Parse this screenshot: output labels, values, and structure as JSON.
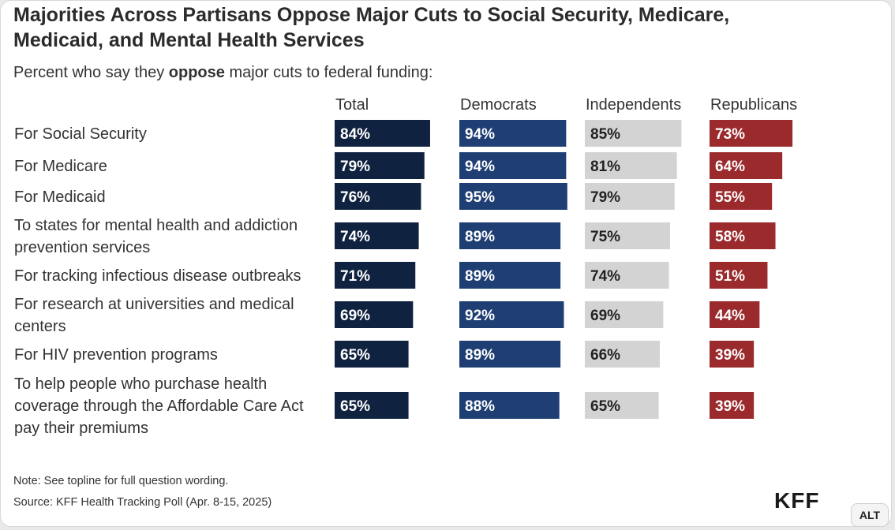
{
  "title": "Majorities Across Partisans Oppose Major Cuts to Social Security, Medicare, Medicaid, and Mental Health Services",
  "subtitle_pre": "Percent who say they ",
  "subtitle_bold": "oppose",
  "subtitle_post": " major cuts to federal funding:",
  "note": "Note: See topline for full question wording.",
  "source": "Source: KFF Health Tracking Poll (Apr. 8-15, 2025)",
  "logo": "KFF",
  "alt_button": "ALT",
  "colors": {
    "Total": "#0f2240",
    "Democrats": "#1f3f74",
    "Independents": "#d3d3d3",
    "Republicans": "#9b2a2d"
  },
  "chart_data": {
    "type": "bar",
    "categories": [
      [
        "For Social Security"
      ],
      [
        "For Medicare"
      ],
      [
        "For Medicaid"
      ],
      [
        "To states for mental health and addiction",
        "prevention services"
      ],
      [
        "For tracking infectious disease outbreaks"
      ],
      [
        "For research at universities and medical",
        "centers"
      ],
      [
        "For HIV prevention programs"
      ],
      [
        "To help people who purchase health",
        "coverage through the Affordable Care Act",
        "pay their premiums"
      ]
    ],
    "series": [
      {
        "name": "Total",
        "values": [
          84,
          79,
          76,
          74,
          71,
          69,
          65,
          65
        ]
      },
      {
        "name": "Democrats",
        "values": [
          94,
          94,
          95,
          89,
          89,
          92,
          89,
          88
        ]
      },
      {
        "name": "Independents",
        "values": [
          85,
          81,
          79,
          75,
          74,
          69,
          66,
          65
        ]
      },
      {
        "name": "Republicans",
        "values": [
          73,
          64,
          55,
          58,
          51,
          44,
          39,
          39
        ]
      }
    ],
    "value_suffix": "%",
    "xlim": [
      0,
      100
    ]
  }
}
